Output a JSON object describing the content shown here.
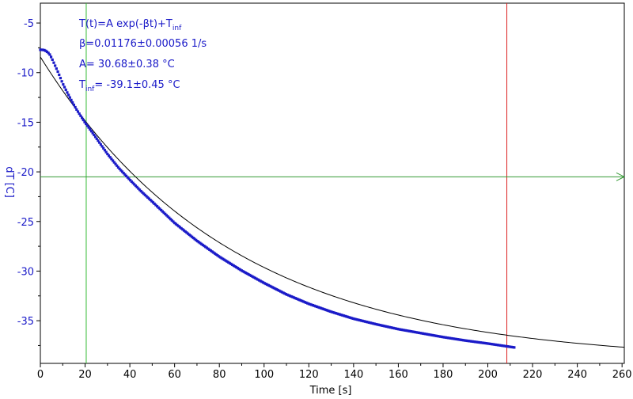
{
  "chart_data": {
    "type": "scatter",
    "xlabel": "Time [s]",
    "ylabel": "dT [C]",
    "xlim": [
      0,
      261
    ],
    "ylim": [
      -39.3,
      -3
    ],
    "x_ticks": [
      0,
      20,
      40,
      60,
      80,
      100,
      120,
      140,
      160,
      180,
      200,
      220,
      240,
      260
    ],
    "y_ticks": [
      -5,
      -10,
      -15,
      -20,
      -25,
      -30,
      -35
    ],
    "grid": false,
    "fit": {
      "formula_main": "T(t)=A exp(-βt)+T",
      "formula_sub": "inf",
      "beta_text": "β=0.01176±0.00056 1/s",
      "A_text": "A= 30.68±0.38 °C",
      "tinf_label": "T",
      "tinf_sub": "inf",
      "tinf_value": "= -39.1±0.45 °C",
      "A": 30.68,
      "beta": 0.01176,
      "T_inf": -39.1,
      "x_range": [
        0,
        261
      ]
    },
    "series": [
      {
        "kind": "measured",
        "x": [
          0,
          1,
          2,
          3,
          4,
          5,
          6,
          7,
          8,
          9,
          10,
          12,
          14,
          16,
          18,
          20,
          22,
          25,
          30,
          35,
          40,
          45,
          50,
          60,
          70,
          80,
          90,
          100,
          110,
          120,
          130,
          140,
          150,
          160,
          170,
          180,
          190,
          200,
          212
        ],
        "y": [
          -7.7,
          -7.7,
          -7.75,
          -7.9,
          -8.1,
          -8.5,
          -9.0,
          -9.5,
          -10.0,
          -10.55,
          -11.1,
          -12.0,
          -12.85,
          -13.65,
          -14.35,
          -15.05,
          -15.65,
          -16.6,
          -18.2,
          -19.6,
          -20.8,
          -21.95,
          -23.0,
          -25.15,
          -26.95,
          -28.55,
          -29.95,
          -31.2,
          -32.35,
          -33.3,
          -34.1,
          -34.8,
          -35.35,
          -35.85,
          -36.25,
          -36.65,
          -37.0,
          -37.3,
          -37.7
        ]
      }
    ],
    "vertical_cursors": [
      {
        "x": 20.5,
        "color": "#33bb33"
      },
      {
        "x": 208.5,
        "color": "#dd2222"
      }
    ],
    "horizontal_cursor": {
      "y": -20.5,
      "color": "#339933"
    },
    "colors": {
      "data": "#1a1ac8",
      "fit": "#000000",
      "axis": "#000000",
      "ytick_text": "#1a1ac8"
    }
  }
}
